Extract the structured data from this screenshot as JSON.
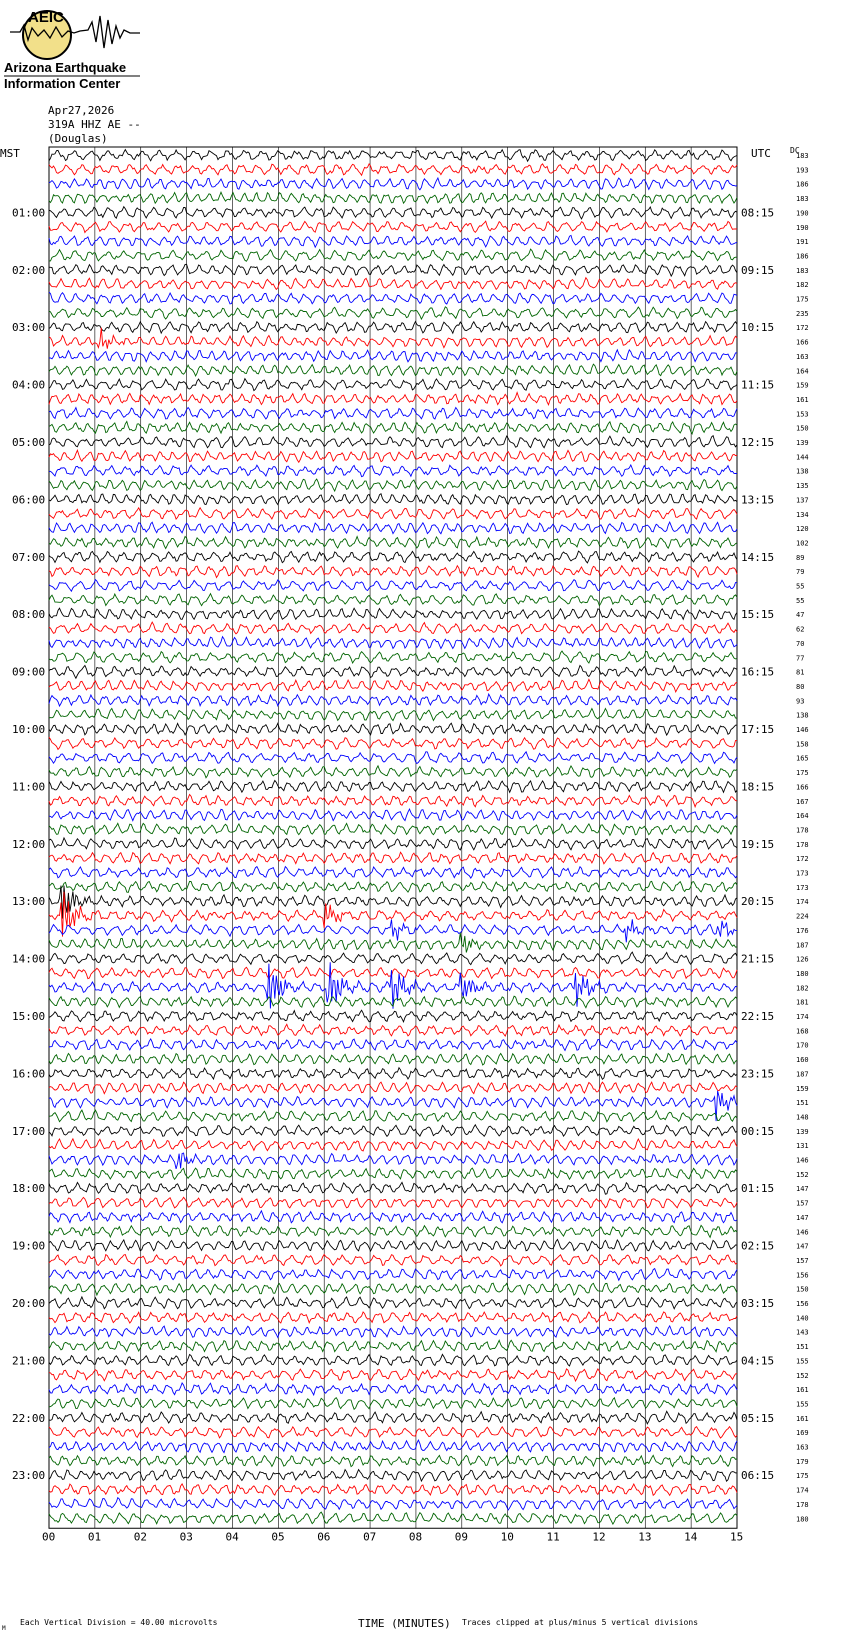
{
  "logo": {
    "acronym": "AEIC",
    "line1": "Arizona Earthquake",
    "line2": "Information Center"
  },
  "header": {
    "date": "Apr27,2026",
    "station": "319A HHZ AE --",
    "location": "(Douglas)"
  },
  "left_axis_title": "MST",
  "right_axis_title": "UTC",
  "dc_title": "DC",
  "footer": {
    "small_mark": "M",
    "left_note": "Each Vertical Division =   40.00 microvolts",
    "xlabel": "TIME (MINUTES)",
    "right_note": "Traces clipped at plus/minus 5 vertical divisions"
  },
  "colors": {
    "trace_cycle": [
      "#000000",
      "#ff0000",
      "#0000ff",
      "#006400"
    ],
    "grid": "#000000"
  },
  "chart_data": {
    "type": "line",
    "title": "",
    "xlabel": "TIME (MINUTES)",
    "xlim": [
      0,
      15
    ],
    "x_tick_labels": [
      "00",
      "01",
      "02",
      "03",
      "04",
      "05",
      "06",
      "07",
      "08",
      "09",
      "10",
      "11",
      "12",
      "13",
      "14",
      "15"
    ],
    "traces_per_hour": 4,
    "left_hour_labels": [
      "",
      "01:00",
      "02:00",
      "03:00",
      "04:00",
      "05:00",
      "06:00",
      "07:00",
      "08:00",
      "09:00",
      "10:00",
      "11:00",
      "12:00",
      "13:00",
      "14:00",
      "15:00",
      "16:00",
      "17:00",
      "18:00",
      "19:00",
      "20:00",
      "21:00",
      "22:00",
      "23:00"
    ],
    "right_hour_labels": [
      "",
      "08:15",
      "09:15",
      "10:15",
      "11:15",
      "12:15",
      "13:15",
      "14:15",
      "15:15",
      "16:15",
      "17:15",
      "18:15",
      "19:15",
      "20:15",
      "21:15",
      "22:15",
      "23:15",
      "00:15",
      "01:15",
      "02:15",
      "03:15",
      "04:15",
      "05:15",
      "06:15"
    ],
    "dc_values": [
      183,
      193,
      186,
      183,
      190,
      190,
      191,
      186,
      183,
      182,
      175,
      235,
      172,
      166,
      163,
      164,
      159,
      161,
      153,
      150,
      139,
      144,
      138,
      135,
      137,
      134,
      120,
      102,
      89,
      79,
      55,
      55,
      47,
      62,
      70,
      77,
      81,
      80,
      93,
      138,
      146,
      158,
      165,
      175,
      166,
      167,
      164,
      178,
      178,
      172,
      173,
      173,
      174,
      224,
      176,
      187,
      126,
      180,
      182,
      181,
      174,
      168,
      170,
      160,
      187,
      159,
      151,
      148,
      139,
      131,
      146,
      152,
      147,
      157,
      147,
      146,
      147,
      157,
      156,
      150,
      156,
      140,
      143,
      151,
      155,
      152,
      161,
      155,
      161,
      169,
      163,
      179,
      175,
      174,
      178,
      180
    ],
    "events": [
      {
        "trace": 13,
        "minute": 1.1,
        "amp": 2.2
      },
      {
        "trace": 52,
        "minute": 0.3,
        "amp": 4.0
      },
      {
        "trace": 53,
        "minute": 0.3,
        "amp": 5.0
      },
      {
        "trace": 53,
        "minute": 6.0,
        "amp": 2.5
      },
      {
        "trace": 54,
        "minute": 7.5,
        "amp": 1.8
      },
      {
        "trace": 54,
        "minute": 12.6,
        "amp": 1.8
      },
      {
        "trace": 54,
        "minute": 14.6,
        "amp": 1.8
      },
      {
        "trace": 55,
        "minute": 9.0,
        "amp": 2.0
      },
      {
        "trace": 58,
        "minute": 4.8,
        "amp": 5.0
      },
      {
        "trace": 58,
        "minute": 6.1,
        "amp": 5.0
      },
      {
        "trace": 58,
        "minute": 7.5,
        "amp": 4.0
      },
      {
        "trace": 58,
        "minute": 9.0,
        "amp": 3.0
      },
      {
        "trace": 58,
        "minute": 11.5,
        "amp": 3.5
      },
      {
        "trace": 66,
        "minute": 14.5,
        "amp": 3.5
      },
      {
        "trace": 70,
        "minute": 2.8,
        "amp": 2.0
      }
    ]
  }
}
